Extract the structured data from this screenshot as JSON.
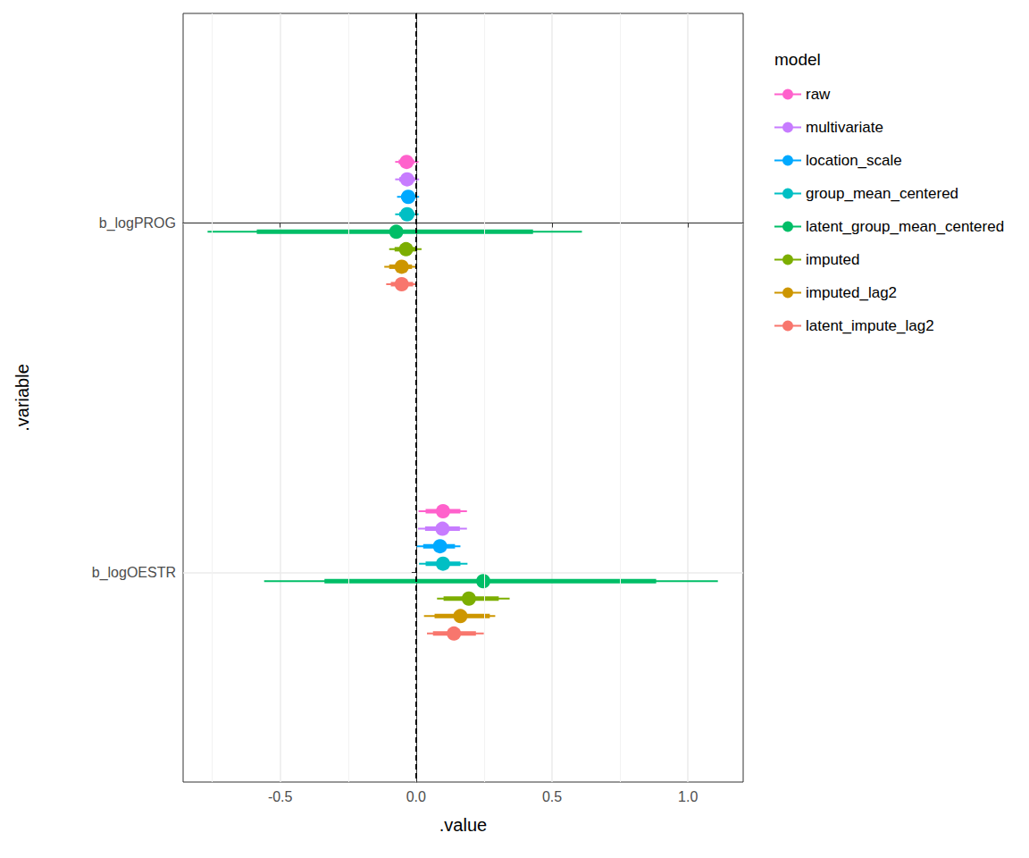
{
  "chart_data": {
    "type": "interval",
    "x_label": ".value",
    "y_label": ".variable",
    "legend_title": "model",
    "legend": "right",
    "grid": true,
    "categories": [
      "b_logPROG",
      "b_logOESTR"
    ],
    "xlim": [
      -0.857,
      1.203
    ],
    "xticks": [
      -0.5,
      {
        "value": 0,
        "label": "0.0"
      },
      0.5,
      {
        "value": 1,
        "label": "1.0"
      }
    ],
    "reference_line": 0,
    "series": [
      {
        "name": "raw",
        "color": "#FF61CC",
        "values": [
          -0.035,
          0.099
        ],
        "lower": [
          -0.077,
          0.009
        ],
        "upper": [
          0.009,
          0.187
        ],
        "lower_inner": [
          -0.064,
          0.035
        ],
        "upper_inner": [
          -0.007,
          0.163
        ]
      },
      {
        "name": "multivariate",
        "color": "#C77CFF",
        "values": [
          -0.033,
          0.097
        ],
        "lower": [
          -0.077,
          0.007
        ],
        "upper": [
          0.011,
          0.187
        ],
        "lower_inner": [
          -0.062,
          0.033
        ],
        "upper_inner": [
          -0.004,
          0.161
        ]
      },
      {
        "name": "location_scale",
        "color": "#00A9FF",
        "values": [
          -0.029,
          0.088
        ],
        "lower": [
          -0.07,
          0.002
        ],
        "upper": [
          0.011,
          0.163
        ],
        "lower_inner": [
          -0.055,
          0.026
        ],
        "upper_inner": [
          -0.002,
          0.143
        ]
      },
      {
        "name": "group_mean_centered",
        "color": "#00BFC4",
        "values": [
          -0.033,
          0.099
        ],
        "lower": [
          -0.077,
          0.011
        ],
        "upper": [
          0.009,
          0.189
        ],
        "lower_inner": [
          -0.062,
          0.035
        ],
        "upper_inner": [
          -0.007,
          0.163
        ]
      },
      {
        "name": "latent_group_mean_centered",
        "color": "#00BE67",
        "values": [
          -0.073,
          0.247
        ],
        "lower": [
          -0.767,
          -0.559
        ],
        "upper": [
          0.61,
          1.11
        ],
        "lower_inner": [
          -0.586,
          -0.337
        ],
        "upper_inner": [
          0.43,
          0.883
        ]
      },
      {
        "name": "imputed",
        "color": "#7CAE00",
        "values": [
          -0.037,
          0.194
        ],
        "lower": [
          -0.099,
          0.077
        ],
        "upper": [
          0.02,
          0.344
        ],
        "lower_inner": [
          -0.079,
          0.101
        ],
        "upper_inner": [
          0.004,
          0.304
        ]
      },
      {
        "name": "imputed_lag2",
        "color": "#CD9600",
        "values": [
          -0.053,
          0.163
        ],
        "lower": [
          -0.117,
          0.029
        ],
        "upper": [
          -0.002,
          0.291
        ],
        "lower_inner": [
          -0.099,
          0.068
        ],
        "upper_inner": [
          -0.015,
          0.271
        ]
      },
      {
        "name": "latent_impute_lag2",
        "color": "#F8766D",
        "values": [
          -0.053,
          0.139
        ],
        "lower": [
          -0.11,
          0.04
        ],
        "upper": [
          0.004,
          0.249
        ],
        "lower_inner": [
          -0.093,
          0.062
        ],
        "upper_inner": [
          -0.011,
          0.22
        ]
      }
    ]
  }
}
